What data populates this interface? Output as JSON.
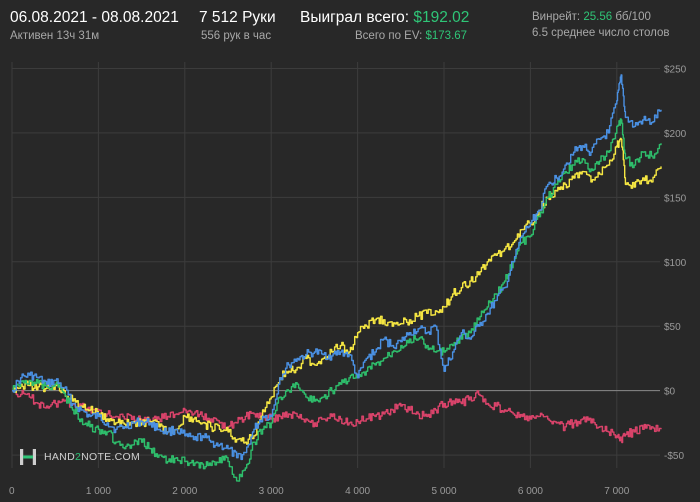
{
  "header": {
    "date_range": "06.08.2021 - 08.08.2021",
    "active_time": "Активен 13ч 31м",
    "hands": "7 512 Руки",
    "hands_per_hour": "556 рук в час",
    "won_label": "Выиграл всего:",
    "won_value": "$192.02",
    "ev_label": "Всего по EV:",
    "ev_value": "$173.67",
    "winrate_label": "Винрейт:",
    "winrate_value": "25.56",
    "winrate_unit": "бб/100",
    "avg_tables": "6.5 среднее число столов"
  },
  "logo": {
    "part1": "HAND",
    "part2": "2",
    "part3": "NOTE.COM"
  },
  "colors": {
    "background": "#282828",
    "grid": "#3c3c3c",
    "zero_line": "#8a8a8a",
    "accent_green": "#2fc577",
    "series_blue": "#4a90e2",
    "series_green": "#2ebd6b",
    "series_yellow": "#f5e642",
    "series_red": "#d9436a"
  },
  "chart_data": {
    "type": "line",
    "xlim": [
      0,
      7500
    ],
    "ylim": [
      -60,
      255
    ],
    "x_ticks": [
      0,
      1000,
      2000,
      3000,
      4000,
      5000,
      6000,
      7000
    ],
    "x_tick_labels": [
      "0",
      "1 000",
      "2 000",
      "3 000",
      "4 000",
      "5 000",
      "6 000",
      "7 000"
    ],
    "y_ticks": [
      250,
      200,
      150,
      100,
      50,
      0,
      -50
    ],
    "y_tick_labels": [
      "$250",
      "$200",
      "$150",
      "$100",
      "$50",
      "$0",
      "-$50"
    ],
    "grid": true,
    "series": [
      {
        "color": "#4a90e2",
        "x": [
          0,
          100,
          200,
          300,
          400,
          500,
          600,
          700,
          800,
          900,
          1000,
          1100,
          1200,
          1300,
          1400,
          1500,
          1600,
          1700,
          1800,
          1900,
          2000,
          2100,
          2200,
          2300,
          2400,
          2500,
          2600,
          2700,
          2800,
          2900,
          3000,
          3100,
          3200,
          3300,
          3400,
          3500,
          3600,
          3700,
          3800,
          3900,
          4000,
          4100,
          4200,
          4300,
          4400,
          4500,
          4600,
          4700,
          4800,
          4900,
          5000,
          5100,
          5200,
          5300,
          5400,
          5500,
          5600,
          5700,
          5800,
          5900,
          6000,
          6100,
          6200,
          6300,
          6400,
          6500,
          6600,
          6700,
          6800,
          6900,
          7000,
          7050,
          7100,
          7200,
          7300,
          7400,
          7512
        ],
        "values": [
          0,
          10,
          12,
          10,
          5,
          8,
          2,
          -10,
          -15,
          -20,
          -20,
          -25,
          -30,
          -28,
          -25,
          -24,
          -25,
          -30,
          -32,
          -30,
          -35,
          -38,
          -35,
          -40,
          -42,
          -45,
          -52,
          -48,
          -30,
          -20,
          -20,
          10,
          20,
          25,
          28,
          30,
          28,
          27,
          30,
          28,
          10,
          25,
          30,
          40,
          35,
          38,
          45,
          48,
          45,
          50,
          15,
          30,
          45,
          40,
          50,
          60,
          70,
          80,
          100,
          120,
          130,
          140,
          160,
          165,
          175,
          185,
          190,
          185,
          195,
          200,
          225,
          245,
          212,
          205,
          210,
          208,
          218
        ]
      },
      {
        "color": "#2ebd6b",
        "x": [
          0,
          100,
          200,
          300,
          400,
          500,
          600,
          700,
          800,
          900,
          1000,
          1100,
          1200,
          1300,
          1400,
          1500,
          1600,
          1700,
          1800,
          1900,
          2000,
          2100,
          2200,
          2300,
          2400,
          2500,
          2600,
          2700,
          2800,
          2900,
          3000,
          3100,
          3200,
          3300,
          3400,
          3500,
          3600,
          3700,
          3800,
          3900,
          4000,
          4100,
          4200,
          4300,
          4400,
          4500,
          4600,
          4700,
          4800,
          4900,
          5000,
          5100,
          5200,
          5300,
          5400,
          5500,
          5600,
          5700,
          5800,
          5900,
          6000,
          6100,
          6200,
          6300,
          6400,
          6500,
          6600,
          6700,
          6800,
          6900,
          7000,
          7050,
          7100,
          7200,
          7300,
          7400,
          7512
        ],
        "values": [
          0,
          7,
          8,
          6,
          3,
          5,
          -2,
          -15,
          -22,
          -28,
          -30,
          -32,
          -40,
          -45,
          -42,
          -40,
          -45,
          -50,
          -55,
          -52,
          -55,
          -58,
          -57,
          -58,
          -52,
          -55,
          -70,
          -60,
          -40,
          -30,
          -25,
          -5,
          0,
          5,
          -5,
          -8,
          -5,
          0,
          5,
          10,
          10,
          15,
          20,
          25,
          30,
          35,
          40,
          40,
          35,
          30,
          30,
          35,
          40,
          45,
          55,
          65,
          75,
          85,
          100,
          115,
          120,
          135,
          150,
          160,
          170,
          175,
          180,
          172,
          178,
          185,
          205,
          210,
          180,
          175,
          185,
          182,
          192
        ]
      },
      {
        "color": "#f5e642",
        "x": [
          0,
          100,
          200,
          300,
          400,
          500,
          600,
          700,
          800,
          900,
          1000,
          1100,
          1200,
          1300,
          1400,
          1500,
          1600,
          1700,
          1800,
          1900,
          2000,
          2100,
          2200,
          2300,
          2400,
          2500,
          2600,
          2700,
          2800,
          2900,
          3000,
          3100,
          3200,
          3300,
          3400,
          3500,
          3600,
          3700,
          3800,
          3900,
          4000,
          4100,
          4200,
          4300,
          4400,
          4500,
          4600,
          4700,
          4800,
          4900,
          5000,
          5100,
          5200,
          5300,
          5400,
          5500,
          5600,
          5700,
          5800,
          5900,
          6000,
          6100,
          6200,
          6300,
          6400,
          6500,
          6600,
          6700,
          6800,
          6900,
          7000,
          7050,
          7100,
          7200,
          7300,
          7400,
          7512
        ],
        "values": [
          0,
          5,
          4,
          3,
          2,
          4,
          0,
          -8,
          -12,
          -15,
          -18,
          -22,
          -25,
          -26,
          -24,
          -25,
          -24,
          -28,
          -32,
          -30,
          -20,
          -22,
          -25,
          -28,
          -30,
          -32,
          -38,
          -40,
          -35,
          -15,
          -5,
          10,
          15,
          18,
          25,
          20,
          25,
          30,
          35,
          30,
          45,
          50,
          55,
          55,
          50,
          52,
          55,
          58,
          60,
          62,
          65,
          75,
          80,
          85,
          90,
          100,
          105,
          110,
          115,
          125,
          130,
          140,
          150,
          155,
          160,
          165,
          170,
          162,
          168,
          175,
          190,
          195,
          160,
          158,
          165,
          162,
          174
        ]
      },
      {
        "color": "#d9436a",
        "x": [
          0,
          100,
          200,
          300,
          400,
          500,
          600,
          700,
          800,
          900,
          1000,
          1100,
          1200,
          1300,
          1400,
          1500,
          1600,
          1700,
          1800,
          1900,
          2000,
          2100,
          2200,
          2300,
          2400,
          2500,
          2600,
          2700,
          2800,
          2900,
          3000,
          3100,
          3200,
          3300,
          3400,
          3500,
          3600,
          3700,
          3800,
          3900,
          4000,
          4100,
          4200,
          4300,
          4400,
          4500,
          4600,
          4700,
          4800,
          4900,
          5000,
          5100,
          5200,
          5300,
          5400,
          5500,
          5600,
          5700,
          5800,
          5900,
          6000,
          6100,
          6200,
          6300,
          6400,
          6500,
          6600,
          6700,
          6800,
          6900,
          7000,
          7050,
          7100,
          7200,
          7300,
          7400,
          7512
        ],
        "values": [
          0,
          -3,
          -5,
          -10,
          -12,
          -10,
          -8,
          -10,
          -12,
          -15,
          -15,
          -18,
          -20,
          -22,
          -20,
          -23,
          -24,
          -22,
          -20,
          -18,
          -15,
          -18,
          -20,
          -22,
          -25,
          -28,
          -25,
          -20,
          -18,
          -20,
          -22,
          -20,
          -18,
          -20,
          -22,
          -25,
          -22,
          -20,
          -22,
          -25,
          -24,
          -22,
          -20,
          -18,
          -15,
          -12,
          -15,
          -18,
          -20,
          -15,
          -10,
          -8,
          -10,
          -5,
          -3,
          -10,
          -12,
          -15,
          -18,
          -20,
          -22,
          -20,
          -22,
          -25,
          -28,
          -25,
          -22,
          -25,
          -28,
          -32,
          -35,
          -38,
          -34,
          -32,
          -30,
          -28,
          -30
        ]
      }
    ]
  }
}
